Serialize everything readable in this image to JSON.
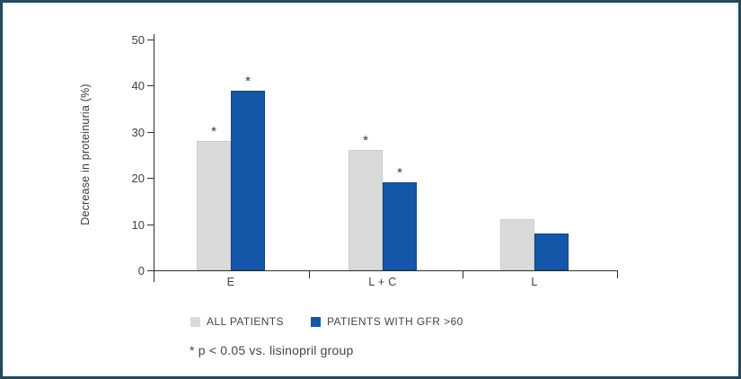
{
  "frame": {
    "border_color": "#27485a",
    "inner_tint": "#e8f3f7"
  },
  "chart_data": {
    "type": "bar",
    "title": "",
    "xlabel": "",
    "ylabel": "Decrease in proteinuria (%)",
    "ylim": [
      0,
      50
    ],
    "yticks": [
      0,
      10,
      20,
      30,
      40,
      50
    ],
    "categories": [
      "E",
      "L + C",
      "L"
    ],
    "series": [
      {
        "name": "ALL PATIENTS",
        "color": "#d9dada",
        "values": [
          28,
          26,
          11
        ],
        "significant": [
          true,
          true,
          false
        ]
      },
      {
        "name": "PATIENTS WITH GFR >60",
        "color": "#1457a8",
        "values": [
          39,
          19,
          8
        ],
        "significant": [
          true,
          true,
          false
        ]
      }
    ],
    "significance_marker": "*",
    "grid": false,
    "legend_position": "bottom"
  },
  "footnote": "* p < 0.05 vs. lisinopril group"
}
